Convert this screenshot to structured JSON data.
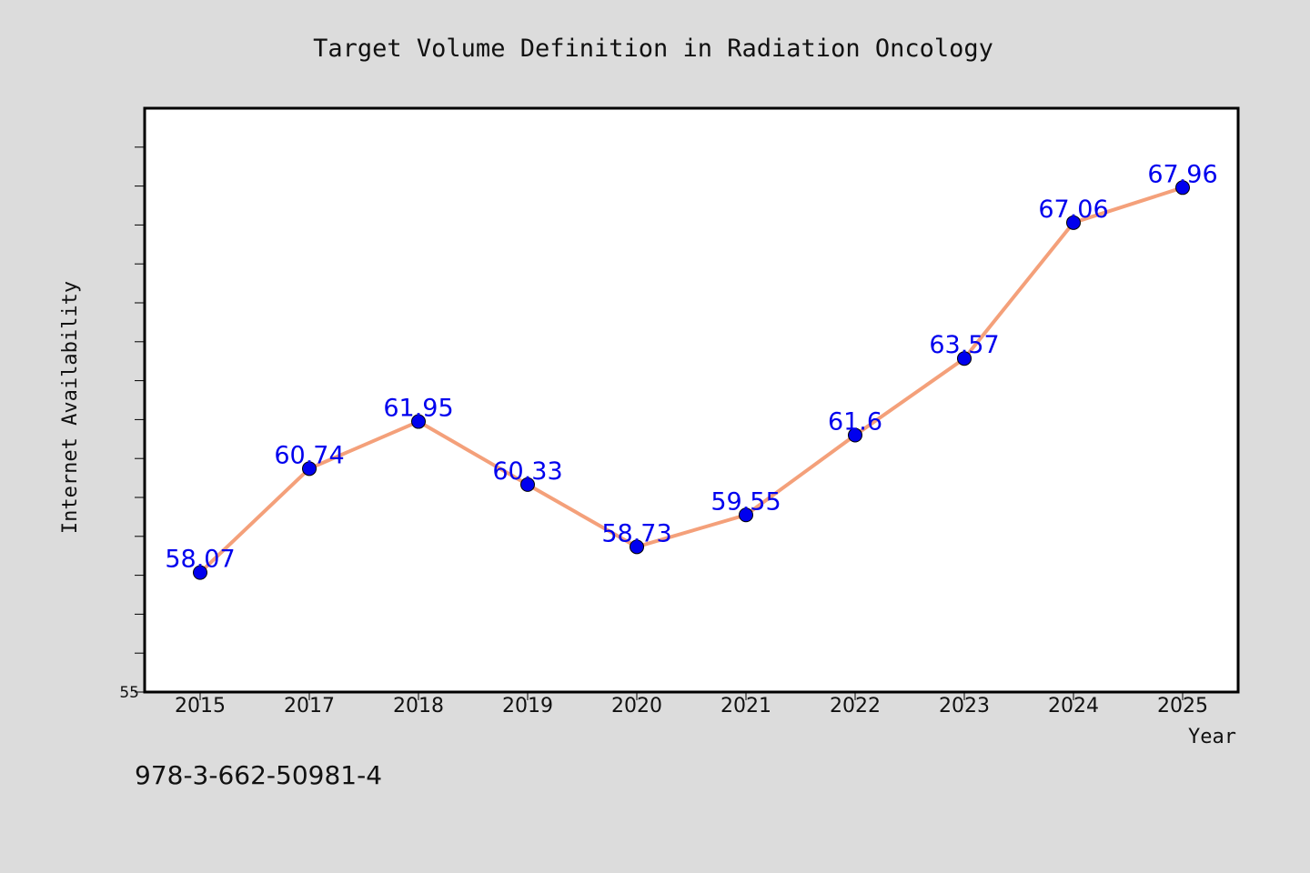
{
  "chart_data": {
    "type": "line",
    "title": "Target Volume Definition in Radiation Oncology",
    "xlabel": "Year",
    "ylabel": "Internet Availability",
    "categories": [
      "2015",
      "2017",
      "2018",
      "2019",
      "2020",
      "2021",
      "2022",
      "2023",
      "2024",
      "2025"
    ],
    "series": [
      {
        "values": [
          58.07,
          60.74,
          61.95,
          60.33,
          58.73,
          59.55,
          61.6,
          63.57,
          67.06,
          67.96
        ],
        "data_labels": [
          "58.07",
          "60.74",
          "61.95",
          "60.33",
          "58.73",
          "59.55",
          "61.6",
          "63.57",
          "67.06",
          "67.96"
        ]
      }
    ],
    "y_tick_labels": [
      "55"
    ],
    "ylim": [
      55,
      70
    ],
    "grid": false,
    "colors": {
      "line": "#f4a07a",
      "marker": "#0000ee",
      "data_label": "#0000ee",
      "background": "#dcdcdc",
      "plot_area": "#ffffff"
    }
  },
  "footer": {
    "isbn": "978-3-662-50981-4"
  }
}
